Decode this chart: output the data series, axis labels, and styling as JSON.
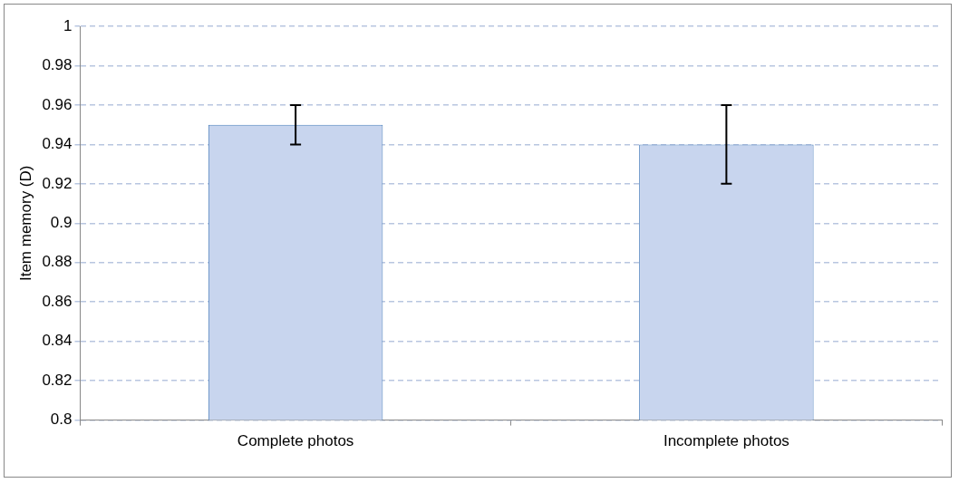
{
  "chart_data": {
    "type": "bar",
    "ylabel": "Item memory (D)",
    "categories": [
      "Complete photos",
      "Incomplete photos"
    ],
    "values": [
      0.95,
      0.94
    ],
    "errors": [
      0.01,
      0.02
    ],
    "color": "#c8d5ee",
    "ylim": [
      0.8,
      1
    ],
    "yticks": [
      0.8,
      0.82,
      0.84,
      0.86,
      0.88,
      0.9,
      0.92,
      0.94,
      0.96,
      0.98,
      1
    ],
    "grid": "y",
    "legend": false
  }
}
